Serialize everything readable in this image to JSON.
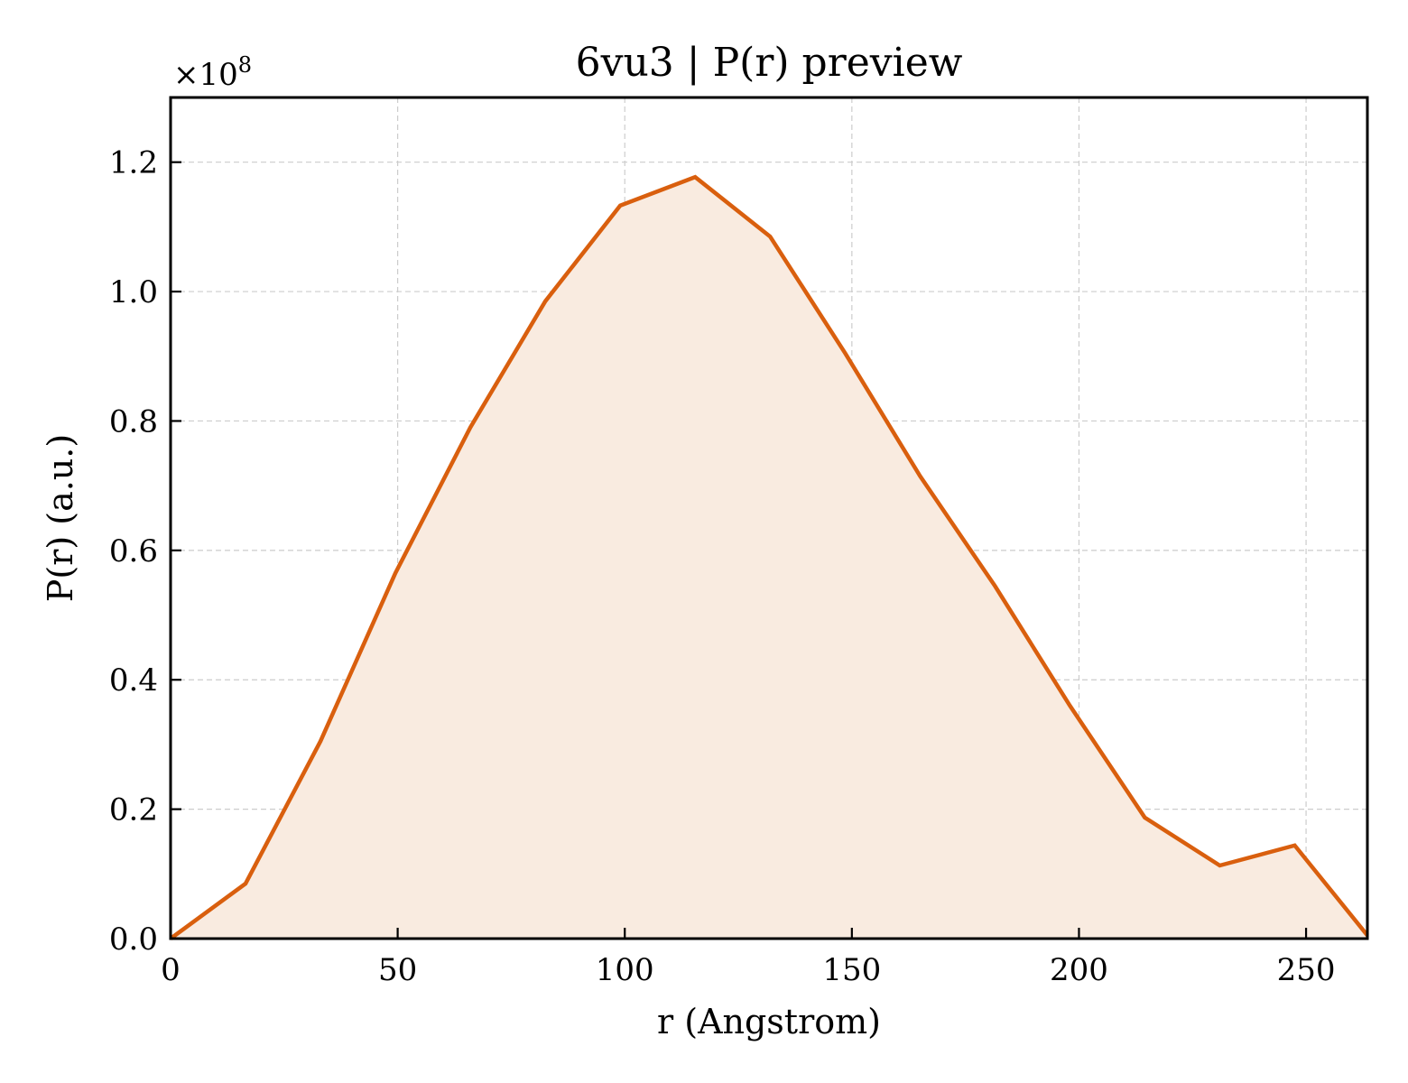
{
  "chart_data": {
    "type": "area",
    "title": "6vu3 | P(r) preview",
    "xlabel": "r (Angstrom)",
    "ylabel": "P(r) (a.u.)",
    "y_multiplier": "×10",
    "y_multiplier_exponent": "8",
    "xlim": [
      0,
      263.5
    ],
    "ylim": [
      0,
      1.3
    ],
    "x_ticks": [
      0,
      50,
      100,
      150,
      200,
      250
    ],
    "x_tick_labels": [
      "0",
      "50",
      "100",
      "150",
      "200",
      "250"
    ],
    "y_ticks": [
      0.0,
      0.2,
      0.4,
      0.6,
      0.8,
      1.0,
      1.2
    ],
    "y_tick_labels": [
      "0.0",
      "0.2",
      "0.4",
      "0.6",
      "0.8",
      "1.0",
      "1.2"
    ],
    "grid": true,
    "series": [
      {
        "color": "#d95f0e",
        "fill_color": "#f9ebe0",
        "x": [
          0,
          16.5,
          33,
          49.5,
          66,
          82.5,
          99,
          115.5,
          132,
          148.5,
          165,
          181.5,
          198,
          214.5,
          231,
          247.5,
          263.5
        ],
        "y": [
          0.0,
          0.085,
          0.305,
          0.565,
          0.79,
          0.985,
          1.133,
          1.177,
          1.085,
          0.905,
          0.715,
          0.545,
          0.36,
          0.187,
          0.113,
          0.144,
          0.005
        ]
      }
    ]
  }
}
